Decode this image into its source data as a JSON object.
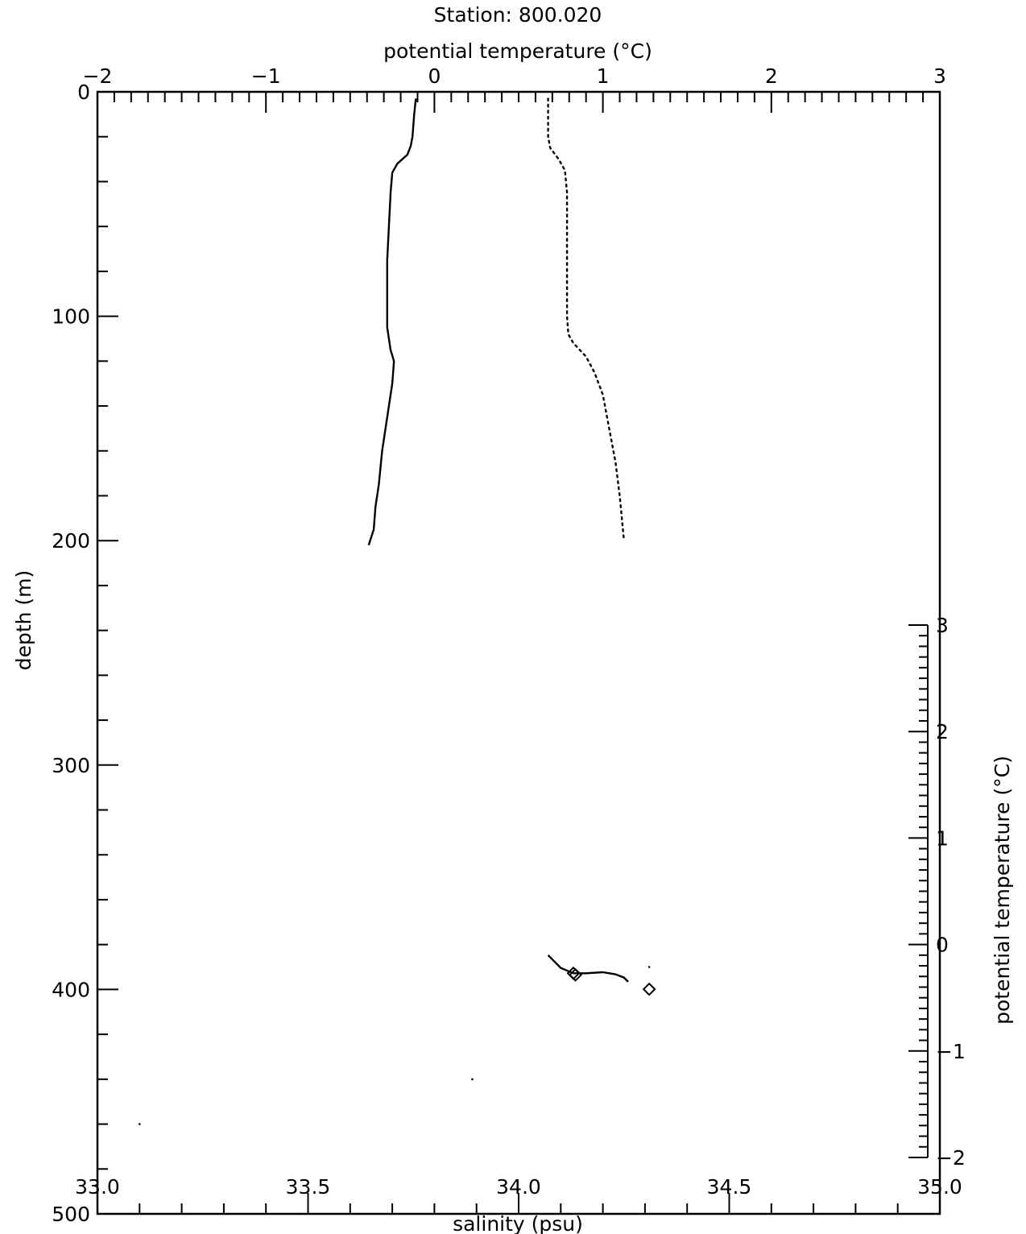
{
  "chart_data": {
    "type": "line",
    "title": "Station:  800.020",
    "axes": {
      "depth": {
        "label": "depth (m)",
        "range": [
          0,
          500
        ],
        "direction": "down",
        "ticks": [
          0,
          100,
          200,
          300,
          400,
          500
        ],
        "tick_labels": [
          "0",
          "100",
          "200",
          "300",
          "400",
          "500"
        ]
      },
      "salinity": {
        "label": "salinity (psu)",
        "range": [
          33.0,
          35.0
        ],
        "ticks": [
          33.0,
          33.5,
          34.0,
          34.5,
          35.0
        ],
        "tick_labels": [
          "33.0",
          "33.5",
          "34.0",
          "34.5",
          "35.0"
        ]
      },
      "temperature_top": {
        "label": "potential temperature (°C)",
        "range": [
          -2,
          3
        ],
        "ticks": [
          -2,
          -1,
          0,
          1,
          2,
          3
        ],
        "tick_labels": [
          "−2",
          "−1",
          "0",
          "1",
          "2",
          "3"
        ]
      },
      "temperature_right": {
        "label": "potential temperature (°C)",
        "range": [
          -2,
          3
        ],
        "ticks": [
          -2,
          -1,
          0,
          1,
          2,
          3
        ],
        "tick_labels": [
          "−2",
          "−1",
          "0",
          "1",
          "2",
          "3"
        ]
      }
    },
    "series": [
      {
        "quantity": "potential temperature",
        "style": "solid",
        "x_axis": "temperature_top",
        "y_axis": "depth",
        "points": [
          [
            -0.11,
            3
          ],
          [
            -0.12,
            10
          ],
          [
            -0.13,
            20
          ],
          [
            -0.14,
            24
          ],
          [
            -0.16,
            28
          ],
          [
            -0.22,
            32
          ],
          [
            -0.25,
            36
          ],
          [
            -0.26,
            45
          ],
          [
            -0.27,
            60
          ],
          [
            -0.28,
            75
          ],
          [
            -0.28,
            90
          ],
          [
            -0.28,
            105
          ],
          [
            -0.26,
            115
          ],
          [
            -0.24,
            120
          ],
          [
            -0.25,
            130
          ],
          [
            -0.28,
            145
          ],
          [
            -0.31,
            160
          ],
          [
            -0.33,
            175
          ],
          [
            -0.35,
            185
          ],
          [
            -0.36,
            195
          ],
          [
            -0.39,
            202
          ]
        ]
      },
      {
        "quantity": "salinity",
        "style": "dotted",
        "x_axis": "salinity",
        "y_axis": "depth",
        "points": [
          [
            34.07,
            3
          ],
          [
            34.07,
            10
          ],
          [
            34.07,
            20
          ],
          [
            34.075,
            25
          ],
          [
            34.095,
            30
          ],
          [
            34.11,
            35
          ],
          [
            34.115,
            45
          ],
          [
            34.115,
            60
          ],
          [
            34.115,
            80
          ],
          [
            34.115,
            100
          ],
          [
            34.118,
            108
          ],
          [
            34.13,
            112
          ],
          [
            34.16,
            118
          ],
          [
            34.18,
            125
          ],
          [
            34.2,
            135
          ],
          [
            34.215,
            150
          ],
          [
            34.23,
            165
          ],
          [
            34.24,
            180
          ],
          [
            34.25,
            200
          ]
        ]
      },
      {
        "quantity": "potential temperature vs salinity",
        "style": "solid",
        "x_axis": "salinity",
        "y_axis": "temperature_right",
        "points": [
          [
            34.07,
            -0.1
          ],
          [
            34.1,
            -0.22
          ],
          [
            34.13,
            -0.27
          ],
          [
            34.16,
            -0.27
          ],
          [
            34.2,
            -0.26
          ],
          [
            34.23,
            -0.28
          ],
          [
            34.25,
            -0.31
          ],
          [
            34.26,
            -0.35
          ]
        ],
        "markers": [
          [
            34.13,
            -0.27
          ],
          [
            34.135,
            -0.285
          ],
          [
            34.31,
            -0.42
          ]
        ]
      }
    ],
    "stray_dots": [
      {
        "x_axis": "salinity",
        "y_axis": "depth",
        "x": 34.31,
        "y": 390
      },
      {
        "x_axis": "salinity",
        "y_axis": "depth",
        "x": 33.89,
        "y": 440
      },
      {
        "x_axis": "salinity",
        "y_axis": "depth",
        "x": 33.1,
        "y": 460
      }
    ]
  }
}
